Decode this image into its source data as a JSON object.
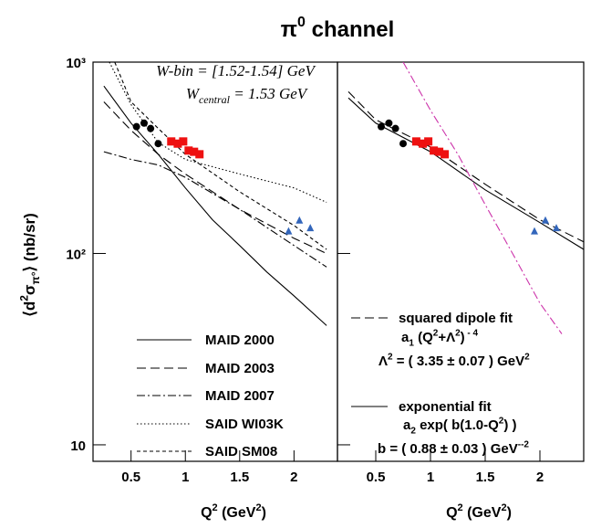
{
  "title": {
    "parts": [
      {
        "text": "π"
      },
      {
        "text": "0",
        "style": "sup"
      },
      {
        "text": " channel"
      }
    ]
  },
  "chart_data": [
    {
      "type": "line",
      "ylabel": {
        "parts": [
          {
            "text": "⟨d"
          },
          {
            "text": "2",
            "style": "sup"
          },
          {
            "text": "σ"
          },
          {
            "text": "π°",
            "style": "sub"
          },
          {
            "text": "⟩ (nb/sr)"
          }
        ]
      },
      "xlabel": {
        "parts": [
          {
            "text": "Q"
          },
          {
            "text": "2",
            "style": "sup"
          },
          {
            "text": " (GeV"
          },
          {
            "text": "2",
            "style": "sup"
          },
          {
            "text": ")"
          }
        ]
      },
      "xlim": [
        0.15,
        2.4
      ],
      "ylim": [
        8.2,
        1000
      ],
      "ylog": true,
      "xticks": [
        0.5,
        1,
        1.5,
        2
      ],
      "yticks": [
        {
          "value": 10,
          "label": "10"
        },
        {
          "value": 100,
          "label": "10²"
        },
        {
          "value": 1000,
          "label": "10³"
        }
      ],
      "legend": "lower left",
      "series": [
        {
          "name": "MAID 2000",
          "color": "#000000",
          "dash": "solid",
          "x": [
            0.25,
            0.5,
            0.75,
            1.0,
            1.25,
            1.5,
            1.75,
            2.0,
            2.3
          ],
          "values": [
            750,
            480,
            330,
            220,
            150,
            110,
            80,
            60,
            42
          ]
        },
        {
          "name": "MAID 2003",
          "color": "#000000",
          "dash": "dashed",
          "x": [
            0.25,
            0.5,
            0.75,
            1.0,
            1.5,
            2.0,
            2.3
          ],
          "values": [
            620,
            440,
            330,
            260,
            170,
            120,
            100
          ]
        },
        {
          "name": "MAID 2007",
          "color": "#000000",
          "dash": "dashdot",
          "x": [
            0.25,
            0.5,
            0.75,
            1.0,
            1.5,
            2.0,
            2.3
          ],
          "values": [
            340,
            310,
            290,
            250,
            170,
            110,
            85
          ]
        },
        {
          "name": "SAID WI03K",
          "color": "#000000",
          "dash": "dotted",
          "x": [
            0.3,
            0.5,
            0.75,
            1.0,
            1.5,
            2.0,
            2.3
          ],
          "values": [
            1000,
            600,
            380,
            310,
            260,
            220,
            185
          ]
        },
        {
          "name": "SAID SM08",
          "color": "#000000",
          "dash": "shortdash",
          "x": [
            0.35,
            0.5,
            0.75,
            1.0,
            1.5,
            2.0,
            2.3
          ],
          "values": [
            1000,
            620,
            450,
            330,
            210,
            140,
            105
          ]
        }
      ],
      "points": [
        {
          "marker": "circle",
          "color": "#000000",
          "x": [
            0.55,
            0.62,
            0.68,
            0.75
          ],
          "values": [
            460,
            480,
            450,
            375
          ]
        },
        {
          "marker": "square",
          "color": "#ee1111",
          "x": [
            0.87,
            0.93,
            0.98,
            1.03,
            1.08,
            1.13
          ],
          "values": [
            385,
            375,
            385,
            345,
            340,
            330
          ]
        },
        {
          "marker": "triangle",
          "color": "#3366bb",
          "x": [
            1.95,
            2.05,
            2.15
          ],
          "values": [
            130,
            148,
            135
          ]
        }
      ],
      "annotations": [
        {
          "parts": [
            {
              "text": "W-bin = [1.52-1.54] GeV"
            }
          ]
        },
        {
          "parts": [
            {
              "text": "W"
            },
            {
              "text": "central",
              "style": "sub"
            },
            {
              "text": " = 1.53 GeV"
            }
          ]
        }
      ]
    },
    {
      "type": "line",
      "xlabel": {
        "parts": [
          {
            "text": "Q"
          },
          {
            "text": "2",
            "style": "sup"
          },
          {
            "text": " (GeV"
          },
          {
            "text": "2",
            "style": "sup"
          },
          {
            "text": ")"
          }
        ]
      },
      "xlim": [
        0.15,
        2.4
      ],
      "ylim": [
        8.2,
        1000
      ],
      "ylog": true,
      "xticks": [
        0.5,
        1,
        1.5,
        2
      ],
      "yticks": [
        10,
        100,
        1000
      ],
      "legend": "lower left",
      "series": [
        {
          "name": "squared dipole fit",
          "color": "#000000",
          "dash": "dashed",
          "x": [
            0.25,
            0.5,
            1.0,
            1.5,
            2.0,
            2.4
          ],
          "values": [
            700,
            500,
            360,
            230,
            150,
            115
          ]
        },
        {
          "name": "exponential fit",
          "color": "#000000",
          "dash": "solid",
          "x": [
            0.25,
            0.5,
            1.0,
            1.5,
            2.0,
            2.4
          ],
          "values": [
            650,
            480,
            340,
            215,
            145,
            105
          ]
        },
        {
          "color": "#cc33aa",
          "dash": "dashdot",
          "x": [
            0.75,
            1.0,
            1.25,
            1.5,
            1.75,
            2.0,
            2.2
          ],
          "values": [
            1000,
            560,
            330,
            180,
            100,
            55,
            38
          ]
        }
      ],
      "points": [
        {
          "marker": "circle",
          "color": "#000000",
          "x": [
            0.55,
            0.62,
            0.68,
            0.75
          ],
          "values": [
            460,
            480,
            450,
            375
          ]
        },
        {
          "marker": "square",
          "color": "#ee1111",
          "x": [
            0.87,
            0.93,
            0.98,
            1.03,
            1.08,
            1.13
          ],
          "values": [
            385,
            375,
            385,
            345,
            340,
            330
          ]
        },
        {
          "marker": "triangle",
          "color": "#3366bb",
          "x": [
            1.95,
            2.05,
            2.15
          ],
          "values": [
            130,
            148,
            135
          ]
        }
      ],
      "annotations": [
        {
          "parts": [
            {
              "text": "a"
            },
            {
              "text": "1",
              "style": "sub"
            },
            {
              "text": " (Q"
            },
            {
              "text": "2",
              "style": "sup"
            },
            {
              "text": "+Λ"
            },
            {
              "text": "2",
              "style": "sup"
            },
            {
              "text": ")"
            },
            {
              "text": " - 4",
              "style": "sup"
            }
          ]
        },
        {
          "parts": [
            {
              "text": "Λ"
            },
            {
              "text": "2",
              "style": "sup"
            },
            {
              "text": " = ( 3.35 ± 0.07 ) GeV"
            },
            {
              "text": "2",
              "style": "sup"
            }
          ]
        },
        {
          "parts": [
            {
              "text": "a"
            },
            {
              "text": "2",
              "style": "sub"
            },
            {
              "text": "  exp( b(1.0-Q"
            },
            {
              "text": "2",
              "style": "sup"
            },
            {
              "text": ") )"
            }
          ]
        },
        {
          "parts": [
            {
              "text": "b = ( 0.88 ± 0.03 ) GeV"
            },
            {
              "text": "--2",
              "style": "sup"
            }
          ]
        }
      ]
    }
  ]
}
